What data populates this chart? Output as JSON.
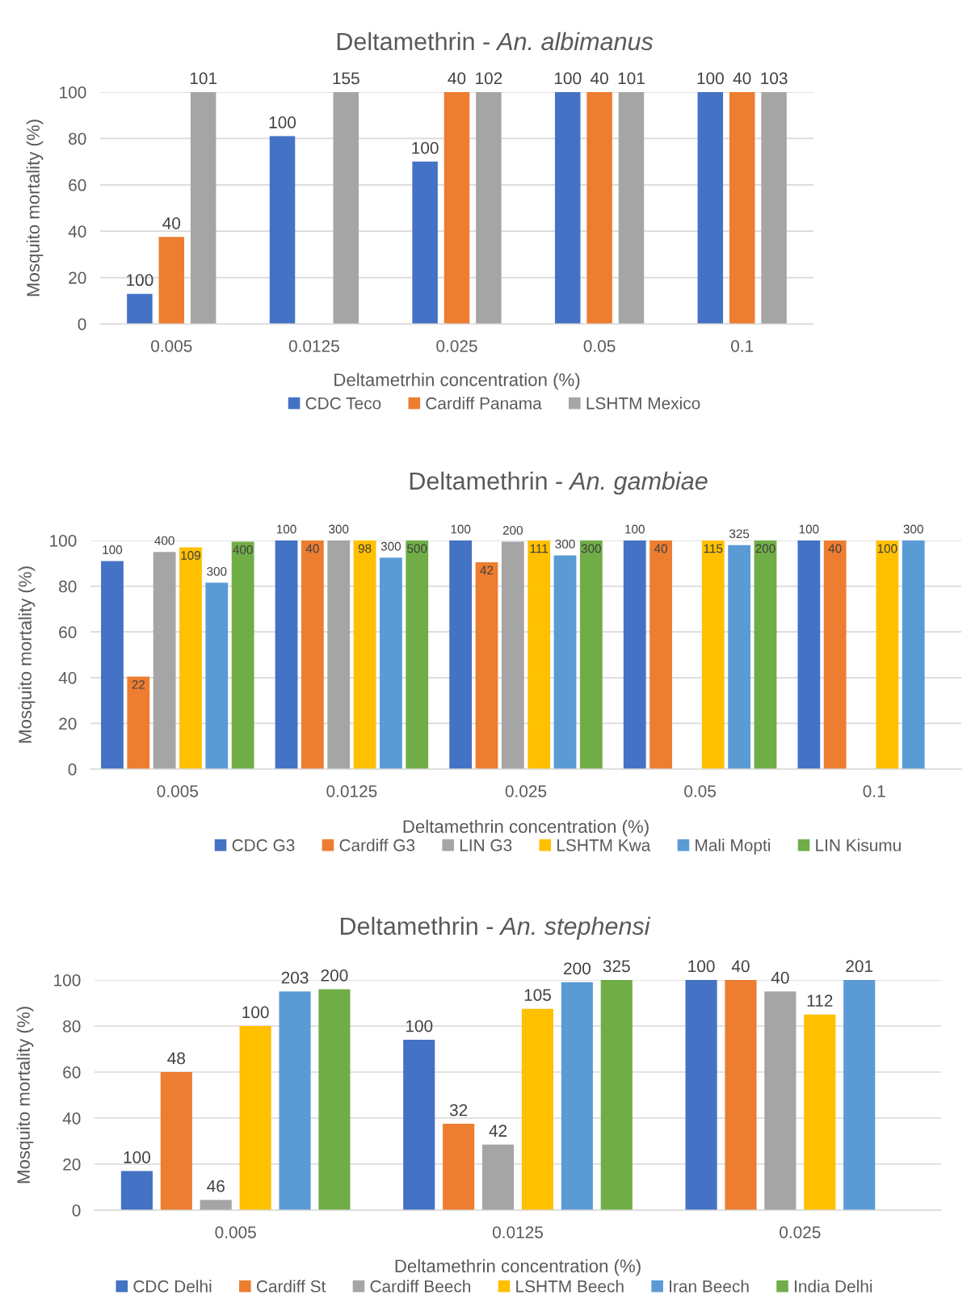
{
  "chart_data": [
    {
      "type": "bar",
      "title": "Deltamethrin - An. albimanus",
      "xlabel": "Deltametrhin concentration (%)",
      "ylabel": "Mosquito mortality (%)",
      "categories": [
        "0.005",
        "0.0125",
        "0.025",
        "0.05",
        "0.1"
      ],
      "series": [
        {
          "name": "CDC Teco",
          "color": "#4472c4",
          "values": [
            13,
            81,
            70,
            100,
            100
          ]
        },
        {
          "name": "Cardiff Panama",
          "color": "#ed7d31",
          "values": [
            37.5,
            null,
            100,
            100,
            100
          ]
        },
        {
          "name": "LSHTM Mexico",
          "color": "#a5a5a5",
          "values": [
            100,
            100,
            100,
            100,
            100
          ]
        }
      ],
      "annotations": [
        "100",
        "100",
        "100",
        "100",
        "100",
        "40",
        "40",
        "40",
        "40",
        "101",
        "155",
        "102",
        "101",
        "103"
      ],
      "ylim": [
        0,
        100
      ],
      "yticks": [
        0,
        20,
        40,
        60,
        80,
        100
      ],
      "grid": "y",
      "legend": "bottom"
    },
    {
      "type": "bar",
      "title": "Deltamethrin - An. gambiae",
      "xlabel": "Deltamethrin concentration (%)",
      "ylabel": "Mosquito mortality (%)",
      "categories": [
        "0.005",
        "0.0125",
        "0.025",
        "0.05",
        "0.1"
      ],
      "series": [
        {
          "name": "CDC G3",
          "color": "#4472c4",
          "values": [
            91,
            100,
            100,
            100,
            100
          ]
        },
        {
          "name": "Cardiff G3",
          "color": "#ed7d31",
          "values": [
            40.5,
            100,
            90.5,
            100,
            100
          ]
        },
        {
          "name": "LIN G3",
          "color": "#a5a5a5",
          "values": [
            95,
            100,
            99.5,
            null,
            null
          ]
        },
        {
          "name": "LSHTM Kwa",
          "color": "#ffc000",
          "values": [
            97,
            100,
            100,
            100,
            100
          ]
        },
        {
          "name": "Mali Mopti",
          "color": "#5b9bd5",
          "values": [
            81.5,
            92.5,
            93.5,
            98,
            100
          ]
        },
        {
          "name": "LIN Kisumu",
          "color": "#70ad47",
          "values": [
            99.5,
            100,
            100,
            100,
            null
          ]
        }
      ],
      "annotations": [
        "100",
        "100",
        "100",
        "100",
        "100",
        "22",
        "40",
        "42",
        "40",
        "40",
        "400",
        "300",
        "200",
        "109",
        "98",
        "111",
        "115",
        "100",
        "300",
        "300",
        "300",
        "325",
        "300",
        "400",
        "500",
        "300",
        "200"
      ],
      "ylim": [
        0,
        100
      ],
      "yticks": [
        0,
        20,
        40,
        60,
        80,
        100
      ],
      "grid": "y",
      "legend": "bottom"
    },
    {
      "type": "bar",
      "title": "Deltamethrin - An. stephensi",
      "xlabel": "Deltamethrin concentration (%)",
      "ylabel": "Mosquito mortality (%)",
      "categories": [
        "0.005",
        "0.0125",
        "0.025"
      ],
      "series": [
        {
          "name": "CDC Delhi",
          "color": "#4472c4",
          "values": [
            17,
            74,
            100
          ]
        },
        {
          "name": "Cardiff St",
          "color": "#ed7d31",
          "values": [
            60,
            37.5,
            100
          ]
        },
        {
          "name": "Cardiff Beech",
          "color": "#a5a5a5",
          "values": [
            4.5,
            28.5,
            95
          ]
        },
        {
          "name": "LSHTM Beech",
          "color": "#ffc000",
          "values": [
            80,
            87.5,
            85
          ]
        },
        {
          "name": "Iran Beech",
          "color": "#5b9bd5",
          "values": [
            95,
            99,
            100
          ]
        },
        {
          "name": "India Delhi",
          "color": "#70ad47",
          "values": [
            96,
            100,
            null
          ]
        }
      ],
      "annotations": [
        "100",
        "100",
        "100",
        "48",
        "32",
        "40",
        "46",
        "42",
        "40",
        "100",
        "105",
        "112",
        "203",
        "200",
        "201",
        "200",
        "325"
      ],
      "ylim": [
        0,
        100
      ],
      "yticks": [
        0,
        20,
        40,
        60,
        80,
        100
      ],
      "grid": "y",
      "legend": "bottom"
    }
  ]
}
